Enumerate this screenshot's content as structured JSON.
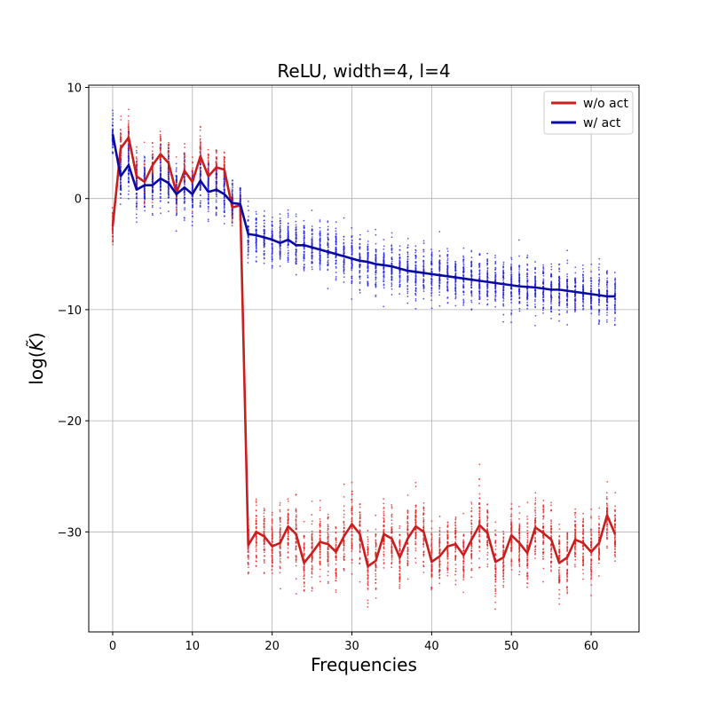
{
  "chart_data": {
    "type": "line",
    "title": "ReLU, width=4, l=4",
    "xlabel": "Frequencies",
    "ylabel_base": "log(",
    "ylabel_symbol": "K̃",
    "ylabel_close": ")",
    "xlim": [
      -3,
      66
    ],
    "ylim": [
      -39,
      10.2
    ],
    "xticks": [
      0,
      10,
      20,
      30,
      40,
      50,
      60
    ],
    "yticks": [
      10,
      0,
      -10,
      -20,
      -30
    ],
    "ytick_labels": [
      "10",
      "0",
      "−10",
      "−20",
      "−30"
    ],
    "grid": true,
    "legend_position": "top-right",
    "series": [
      {
        "name": "w/o act",
        "color": "#c81e1e",
        "scatter_color": "#e02020",
        "x": [
          0,
          1,
          2,
          3,
          4,
          5,
          6,
          7,
          8,
          9,
          10,
          11,
          12,
          13,
          14,
          15,
          16,
          17,
          18,
          19,
          20,
          21,
          22,
          23,
          24,
          25,
          26,
          27,
          28,
          29,
          30,
          31,
          32,
          33,
          34,
          35,
          36,
          37,
          38,
          39,
          40,
          41,
          42,
          43,
          44,
          45,
          46,
          47,
          48,
          49,
          50,
          51,
          52,
          53,
          54,
          55,
          56,
          57,
          58,
          59,
          60,
          61,
          62,
          63
        ],
        "values": [
          -2.5,
          4.5,
          5.5,
          2,
          1.5,
          3,
          4,
          3.2,
          0.5,
          2.5,
          1.5,
          3.8,
          2,
          2.8,
          2.6,
          -0.8,
          -0.6,
          -31.2,
          -30,
          -30.4,
          -31.3,
          -31,
          -29.5,
          -30.2,
          -32.8,
          -31.9,
          -30.9,
          -31.1,
          -31.8,
          -30.4,
          -29.3,
          -30.2,
          -33.1,
          -32.6,
          -30.2,
          -30.6,
          -32.3,
          -30.6,
          -29.5,
          -30,
          -32.7,
          -32.2,
          -31.3,
          -31.1,
          -32.1,
          -30.7,
          -29.4,
          -30.1,
          -32.7,
          -32.3,
          -30.3,
          -31,
          -31.9,
          -29.6,
          -30.1,
          -30.7,
          -32.8,
          -32.3,
          -30.7,
          -31,
          -31.8,
          -31,
          -28.5,
          -30.2
        ],
        "spread": [
          1.5,
          2,
          1.8,
          1.6,
          1.7,
          1.8,
          1.8,
          1.7,
          1.8,
          1.8,
          1.7,
          1.8,
          1.8,
          1.7,
          1.6,
          1.2,
          1.2,
          2.4,
          2.5,
          2.5,
          2.5,
          2.5,
          2.5,
          2.6,
          2.6,
          2.6,
          2.5,
          2.5,
          2.5,
          2.5,
          2.6,
          2.6,
          2.6,
          2.6,
          2.5,
          2.5,
          2.5,
          2.5,
          2.6,
          2.6,
          2.6,
          2.6,
          2.5,
          2.5,
          2.5,
          2.5,
          2.6,
          2.6,
          2.6,
          2.5,
          2.5,
          2.5,
          2.5,
          2.6,
          2.6,
          2.6,
          2.6,
          2.6,
          2.5,
          2.5,
          2.5,
          2.5,
          2.4,
          2.5
        ]
      },
      {
        "name": "w/ act",
        "color": "#0a0aa0",
        "scatter_color": "#2020e0",
        "x": [
          0,
          1,
          2,
          3,
          4,
          5,
          6,
          7,
          8,
          9,
          10,
          11,
          12,
          13,
          14,
          15,
          16,
          17,
          18,
          19,
          20,
          21,
          22,
          23,
          24,
          25,
          26,
          27,
          28,
          29,
          30,
          31,
          32,
          33,
          34,
          35,
          36,
          37,
          38,
          39,
          40,
          41,
          42,
          43,
          44,
          45,
          46,
          47,
          48,
          49,
          50,
          51,
          52,
          53,
          54,
          55,
          56,
          57,
          58,
          59,
          60,
          61,
          62,
          63
        ],
        "values": [
          5.8,
          2,
          3,
          0.8,
          1.2,
          1.2,
          1.8,
          1.4,
          0.4,
          1,
          0.4,
          1.6,
          0.6,
          0.8,
          0.4,
          -0.4,
          -0.5,
          -3.2,
          -3.3,
          -3.5,
          -3.7,
          -4,
          -3.7,
          -4.2,
          -4.2,
          -4.4,
          -4.6,
          -4.8,
          -5,
          -5.2,
          -5.4,
          -5.6,
          -5.7,
          -5.9,
          -6,
          -6.1,
          -6.3,
          -6.5,
          -6.6,
          -6.7,
          -6.8,
          -6.9,
          -7,
          -7.1,
          -7.2,
          -7.3,
          -7.4,
          -7.5,
          -7.6,
          -7.7,
          -7.8,
          -7.9,
          -7.95,
          -8,
          -8.1,
          -8.2,
          -8.2,
          -8.3,
          -8.4,
          -8.5,
          -8.6,
          -8.7,
          -8.8,
          -8.8
        ],
        "spread": [
          1.5,
          2,
          2,
          2,
          2,
          2,
          2,
          2,
          2,
          2,
          2,
          2,
          2,
          2,
          2,
          1.5,
          1.5,
          2,
          2,
          2,
          2,
          2,
          2,
          2,
          2,
          2,
          2,
          2,
          2,
          2,
          2,
          2,
          2,
          2,
          2,
          2,
          2,
          2,
          2,
          2,
          2,
          2,
          2,
          2,
          2,
          2,
          2,
          2,
          2,
          2,
          2,
          2,
          2,
          2,
          2,
          2,
          2,
          2,
          2,
          2,
          2,
          2,
          2,
          2
        ]
      }
    ]
  }
}
